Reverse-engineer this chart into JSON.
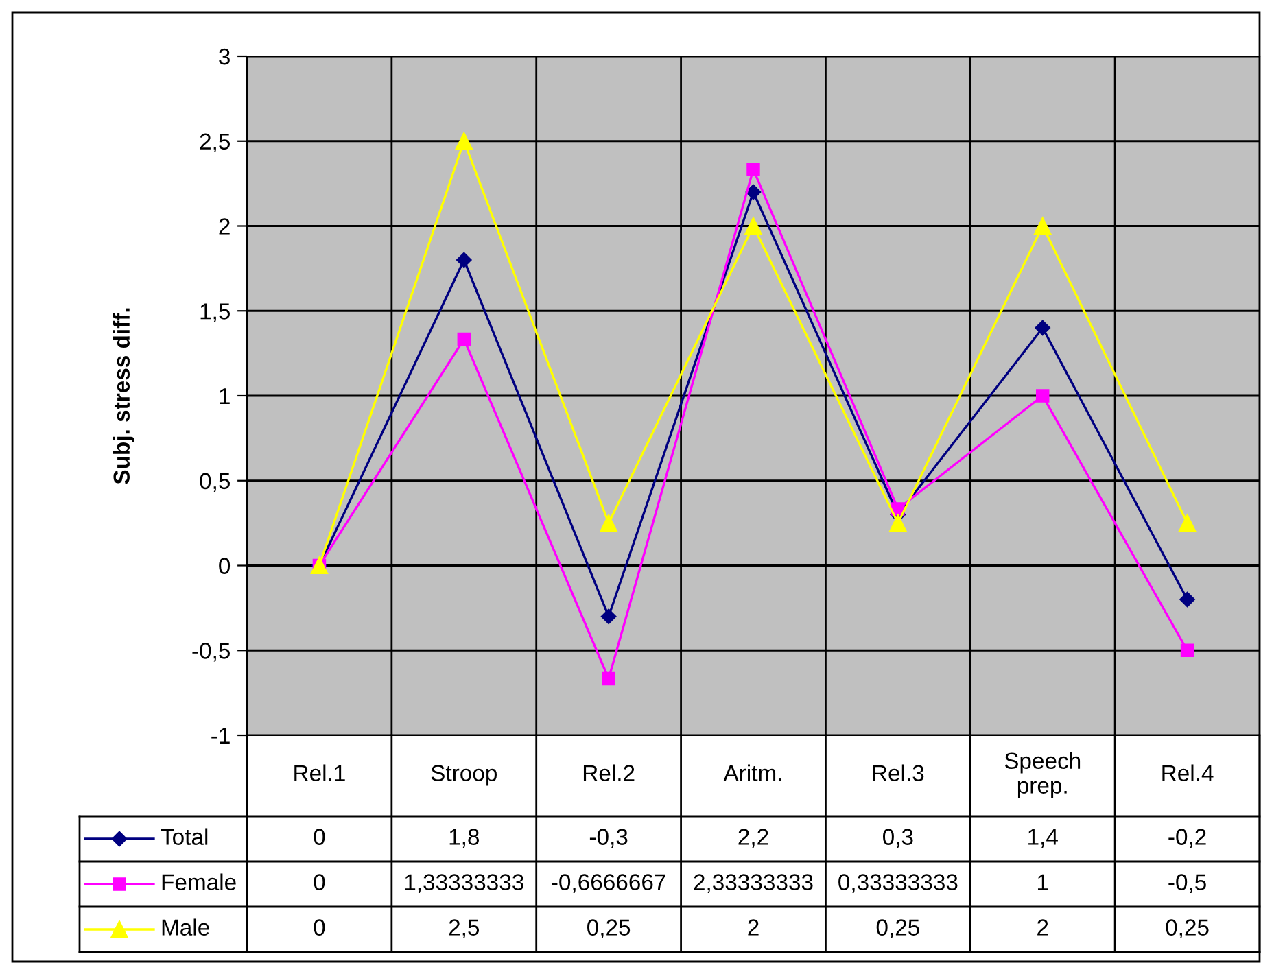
{
  "chart_data": {
    "type": "line",
    "ylabel": "Subj. stress diff.",
    "categories": [
      "Rel.1",
      "Stroop",
      "Rel.2",
      "Aritm.",
      "Rel.3",
      "Speech\nprep.",
      "Rel.4"
    ],
    "series": [
      {
        "name": "Total",
        "color": "#000080",
        "marker": "diamond",
        "values": [
          0,
          1.8,
          -0.3,
          2.2,
          0.3,
          1.4,
          -0.2
        ],
        "value_labels": [
          "0",
          "1,8",
          "-0,3",
          "2,2",
          "0,3",
          "1,4",
          "-0,2"
        ]
      },
      {
        "name": "Female",
        "color": "#ff00ff",
        "marker": "square",
        "values": [
          0,
          1.33333333,
          -0.6666667,
          2.33333333,
          0.33333333,
          1,
          -0.5
        ],
        "value_labels": [
          "0",
          "1,33333333",
          "-0,6666667",
          "2,33333333",
          "0,33333333",
          "1",
          "-0,5"
        ]
      },
      {
        "name": "Male",
        "color": "#ffff00",
        "marker": "triangle",
        "values": [
          0,
          2.5,
          0.25,
          2,
          0.25,
          2,
          0.25
        ],
        "value_labels": [
          "0",
          "2,5",
          "0,25",
          "2",
          "0,25",
          "2",
          "0,25"
        ]
      }
    ],
    "ylim": [
      -1,
      3
    ],
    "yticks": [
      -1,
      {
        "value": -0.5,
        "label": "-0,5"
      },
      0,
      {
        "value": 0.5,
        "label": "0,5"
      },
      1,
      {
        "value": 1.5,
        "label": "1,5"
      },
      2,
      {
        "value": 2.5,
        "label": "2,5"
      },
      3
    ],
    "grid": true,
    "legend": "bottom left",
    "line_style": "solid"
  }
}
